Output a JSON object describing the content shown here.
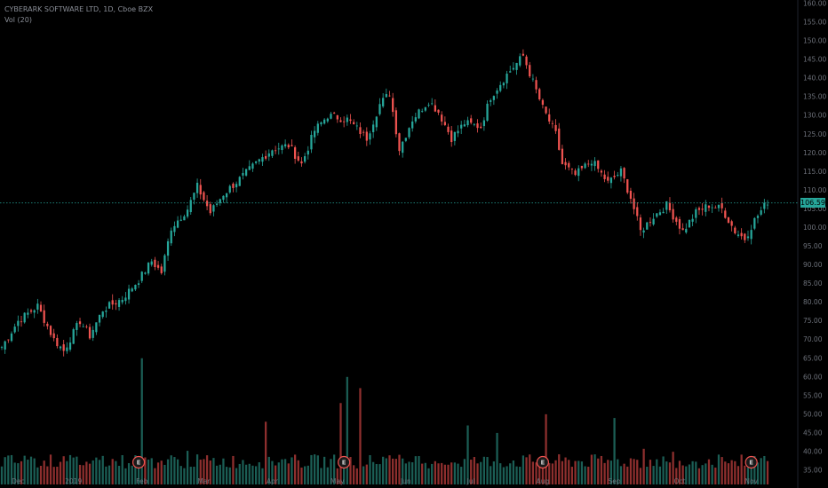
{
  "legend": {
    "title": "CYBERARK SOFTWARE LTD, 1D, Cboe BZX",
    "volume_label": "Vol (20)"
  },
  "last_price": {
    "value": 106.59,
    "label": "106.59",
    "color": "#26a69a"
  },
  "colors": {
    "up": "#26a69a",
    "down": "#ef5350",
    "up_vol": "#1b5e55",
    "down_vol": "#8e2f2e",
    "grid": "#2a2e39",
    "axis_text": "#6d717a"
  },
  "events": [
    {
      "label": "E",
      "x_month": "Feb",
      "index": 42
    },
    {
      "label": "E",
      "x_month": "May",
      "index": 105
    },
    {
      "label": "E",
      "x_month": "Aug",
      "index": 166
    },
    {
      "label": "E",
      "x_month": "Nov",
      "index": 230
    }
  ],
  "chart_data": {
    "type": "candlestick",
    "ylim": [
      35,
      160
    ],
    "y_ticks": [
      35,
      40,
      45,
      50,
      55,
      60,
      65,
      70,
      75,
      80,
      85,
      90,
      95,
      100,
      105,
      110,
      115,
      120,
      125,
      130,
      135,
      140,
      145,
      150,
      155,
      160
    ],
    "y_tick_labels": [
      "35.00",
      "40.00",
      "45.00",
      "50.00",
      "55.00",
      "60.00",
      "65.00",
      "70.00",
      "75.00",
      "80.00",
      "85.00",
      "90.00",
      "95.00",
      "100.00",
      "105.00",
      "110.00",
      "115.00",
      "120.00",
      "125.00",
      "130.00",
      "135.00",
      "140.00",
      "145.00",
      "150.00",
      "155.00",
      "160.00"
    ],
    "x_ticks": [
      {
        "label": "Dec",
        "index": 5
      },
      {
        "label": "2019",
        "index": 22
      },
      {
        "label": "Feb",
        "index": 43
      },
      {
        "label": "Mar",
        "index": 62
      },
      {
        "label": "Apr",
        "index": 83
      },
      {
        "label": "May",
        "index": 103
      },
      {
        "label": "Jun",
        "index": 124
      },
      {
        "label": "Jul",
        "index": 144
      },
      {
        "label": "Aug",
        "index": 166
      },
      {
        "label": "Sep",
        "index": 188
      },
      {
        "label": "Oct",
        "index": 208
      },
      {
        "label": "Nov",
        "index": 230
      }
    ],
    "close_anchors": [
      [
        0,
        68
      ],
      [
        5,
        75
      ],
      [
        11,
        79
      ],
      [
        16,
        70
      ],
      [
        19,
        67
      ],
      [
        24,
        75
      ],
      [
        27,
        71
      ],
      [
        31,
        78
      ],
      [
        37,
        81
      ],
      [
        42,
        86
      ],
      [
        46,
        91
      ],
      [
        49,
        88
      ],
      [
        52,
        100
      ],
      [
        57,
        105
      ],
      [
        60,
        111
      ],
      [
        64,
        104
      ],
      [
        68,
        109
      ],
      [
        73,
        113
      ],
      [
        79,
        118
      ],
      [
        83,
        121
      ],
      [
        88,
        122
      ],
      [
        92,
        117
      ],
      [
        96,
        126
      ],
      [
        100,
        130
      ],
      [
        106,
        129
      ],
      [
        112,
        124
      ],
      [
        116,
        133
      ],
      [
        119,
        136
      ],
      [
        122,
        121
      ],
      [
        126,
        129
      ],
      [
        131,
        134
      ],
      [
        134,
        131
      ],
      [
        138,
        124
      ],
      [
        142,
        128
      ],
      [
        147,
        127
      ],
      [
        150,
        135
      ],
      [
        155,
        141
      ],
      [
        160,
        146
      ],
      [
        163,
        139
      ],
      [
        166,
        132
      ],
      [
        170,
        125
      ],
      [
        172,
        117
      ],
      [
        176,
        114
      ],
      [
        181,
        118
      ],
      [
        186,
        112
      ],
      [
        190,
        115
      ],
      [
        193,
        108
      ],
      [
        196,
        99
      ],
      [
        200,
        103
      ],
      [
        204,
        106
      ],
      [
        209,
        99
      ],
      [
        213,
        104
      ],
      [
        217,
        106
      ],
      [
        221,
        105
      ],
      [
        225,
        99
      ],
      [
        228,
        97
      ],
      [
        231,
        102
      ],
      [
        235,
        107
      ]
    ],
    "volume_spikes": [
      [
        43,
        65
      ],
      [
        81,
        48
      ],
      [
        104,
        53
      ],
      [
        106,
        60
      ],
      [
        110,
        57
      ],
      [
        143,
        47
      ],
      [
        152,
        45
      ],
      [
        167,
        50
      ],
      [
        188,
        49
      ]
    ],
    "n_bars": 236
  }
}
